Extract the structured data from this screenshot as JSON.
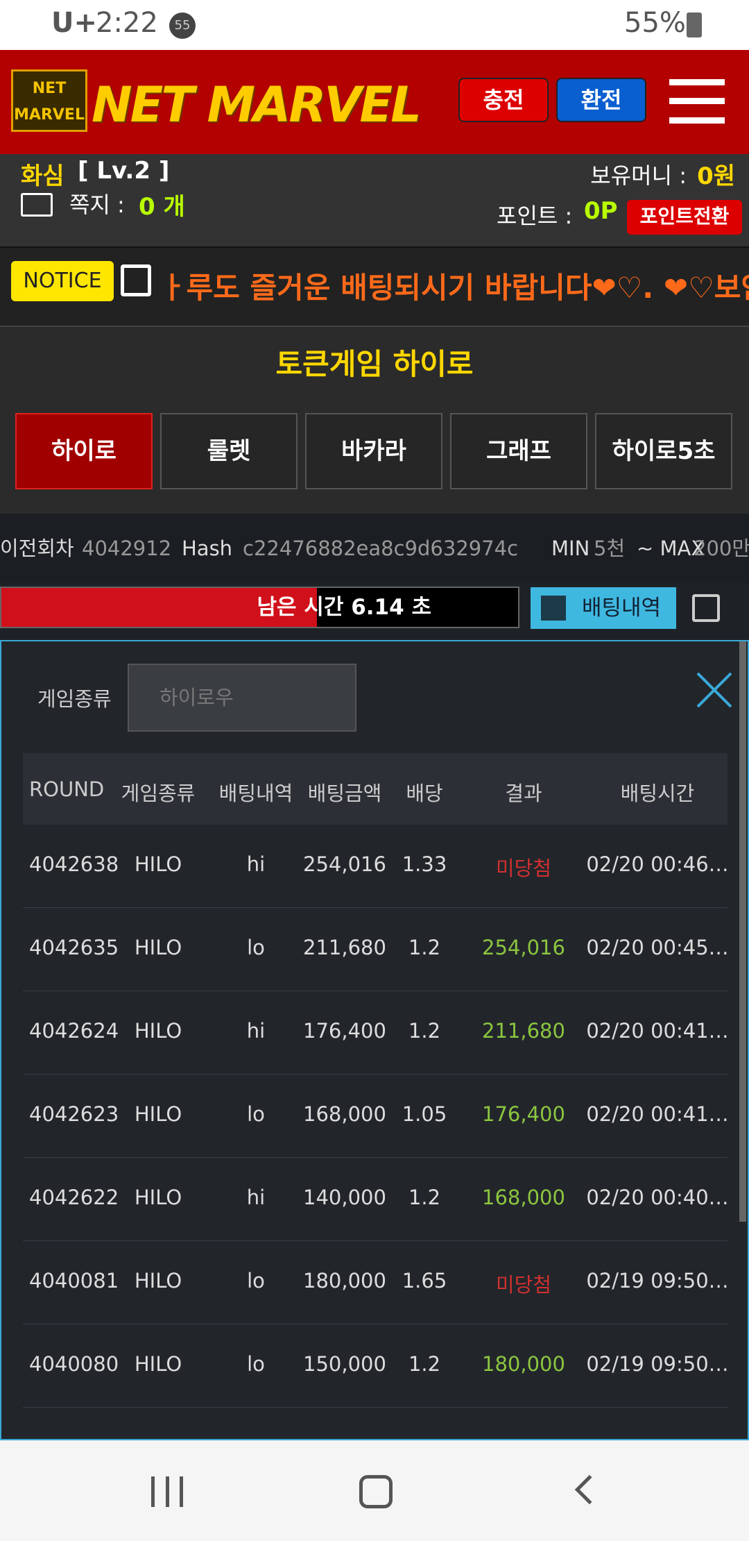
{
  "status_bar": {
    "carrier": "U+",
    "time": "2:22",
    "badge": "55",
    "battery": "55%"
  },
  "header": {
    "logo_badge": "NET MARVEL",
    "logo": "NET MARVEL",
    "buttons": [
      "충전",
      "환전"
    ]
  },
  "user": {
    "name": "화심",
    "level": "[ Lv.2 ]",
    "message_label": "쪽지 :",
    "message_count": "0 개",
    "money_label": "보유머니 :",
    "money": "0원",
    "point_label": "포인트 :",
    "point": "0P",
    "point_button": "포인트전환"
  },
  "notice": {
    "badge": "NOTICE",
    "text": "ㅏ루도 즐거운 배팅되시기 바랍니다❤♡. ❤♡보안상 배"
  },
  "game": {
    "title": "토큰게임 하이로",
    "tabs": [
      "하이로",
      "룰렛",
      "바카라",
      "그래프",
      "하이로5초"
    ]
  },
  "info": {
    "prev_label": "이전회차",
    "prev_round": "4042912",
    "hash_label": "Hash",
    "hash": "c22476882ea8c9d632974c…",
    "min_label": "MIN",
    "min": "5천",
    "max_label": "~ MAX",
    "max": "200만"
  },
  "timer": {
    "text": "남은 시간 6.14 초",
    "history_button": "배팅내역"
  },
  "history": {
    "filter_label": "게임종류",
    "filter_value": "하이로우",
    "columns": [
      "ROUND",
      "게임종류",
      "배팅내역",
      "배팅금액",
      "배당",
      "결과",
      "배팅시간"
    ],
    "rows": [
      [
        "4042638",
        "HILO",
        "hi",
        "254,016",
        "1.33",
        "미당첨",
        "02/20 00:46…"
      ],
      [
        "4042635",
        "HILO",
        "lo",
        "211,680",
        "1.2",
        "254,016",
        "02/20 00:45…"
      ],
      [
        "4042624",
        "HILO",
        "hi",
        "176,400",
        "1.2",
        "211,680",
        "02/20 00:41…"
      ],
      [
        "4042623",
        "HILO",
        "lo",
        "168,000",
        "1.05",
        "176,400",
        "02/20 00:41…"
      ],
      [
        "4042622",
        "HILO",
        "hi",
        "140,000",
        "1.2",
        "168,000",
        "02/20 00:40…"
      ],
      [
        "4040081",
        "HILO",
        "lo",
        "180,000",
        "1.65",
        "미당첨",
        "02/19 09:50…"
      ],
      [
        "4040080",
        "HILO",
        "lo",
        "150,000",
        "1.2",
        "180,000",
        "02/19 09:50…"
      ]
    ]
  }
}
